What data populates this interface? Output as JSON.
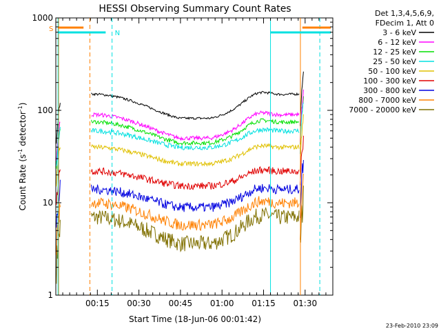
{
  "chart_data": {
    "type": "line",
    "title": "HESSI Observing Summary Count Rates",
    "xlabel": "Start Time (18-Jun-06 00:01:42)",
    "ylabel_text": "Count Rate (s",
    "ylabel_sup1": "-1",
    "ylabel_mid": " detector",
    "ylabel_sup2": "-1",
    "ylabel_end": ")",
    "yscale": "log",
    "ylim": [
      1,
      1000
    ],
    "xlim_minutes": [
      0,
      100
    ],
    "x_ticks": [
      {
        "m": 15,
        "label": "00:15"
      },
      {
        "m": 30,
        "label": "00:30"
      },
      {
        "m": 45,
        "label": "00:45"
      },
      {
        "m": 60,
        "label": "01:00"
      },
      {
        "m": 75,
        "label": "01:15"
      },
      {
        "m": 90,
        "label": "01:30"
      }
    ],
    "y_ticks": [
      {
        "v": 1,
        "label": "1"
      },
      {
        "v": 10,
        "label": "10"
      },
      {
        "v": 100,
        "label": "100"
      },
      {
        "v": 1000,
        "label": "1000"
      }
    ],
    "legend": {
      "title1": "Det 1,3,4,5,6,9,",
      "title2": "FDecim 1, Att 0"
    },
    "flags": {
      "saa_label": "S",
      "night_label": "N",
      "saa_color": "#ff8000",
      "night_color": "#00e0e0"
    },
    "series": [
      {
        "name": "3 - 6 keV",
        "color": "#000000"
      },
      {
        "name": "6 - 12 keV",
        "color": "#ff00ff"
      },
      {
        "name": "12 - 25 keV",
        "color": "#00e000"
      },
      {
        "name": "25 - 50 keV",
        "color": "#00e0e0"
      },
      {
        "name": "50 - 100 keV",
        "color": "#e0c000"
      },
      {
        "name": "100 - 300 keV",
        "color": "#e00000"
      },
      {
        "name": "300 - 800 keV",
        "color": "#0000e0"
      },
      {
        "name": "800 - 7000 keV",
        "color": "#ff8000"
      },
      {
        "name": "7000 - 20000 keV",
        "color": "#807000"
      }
    ]
  },
  "footer_timestamp": "23-Feb-2010 23:09"
}
